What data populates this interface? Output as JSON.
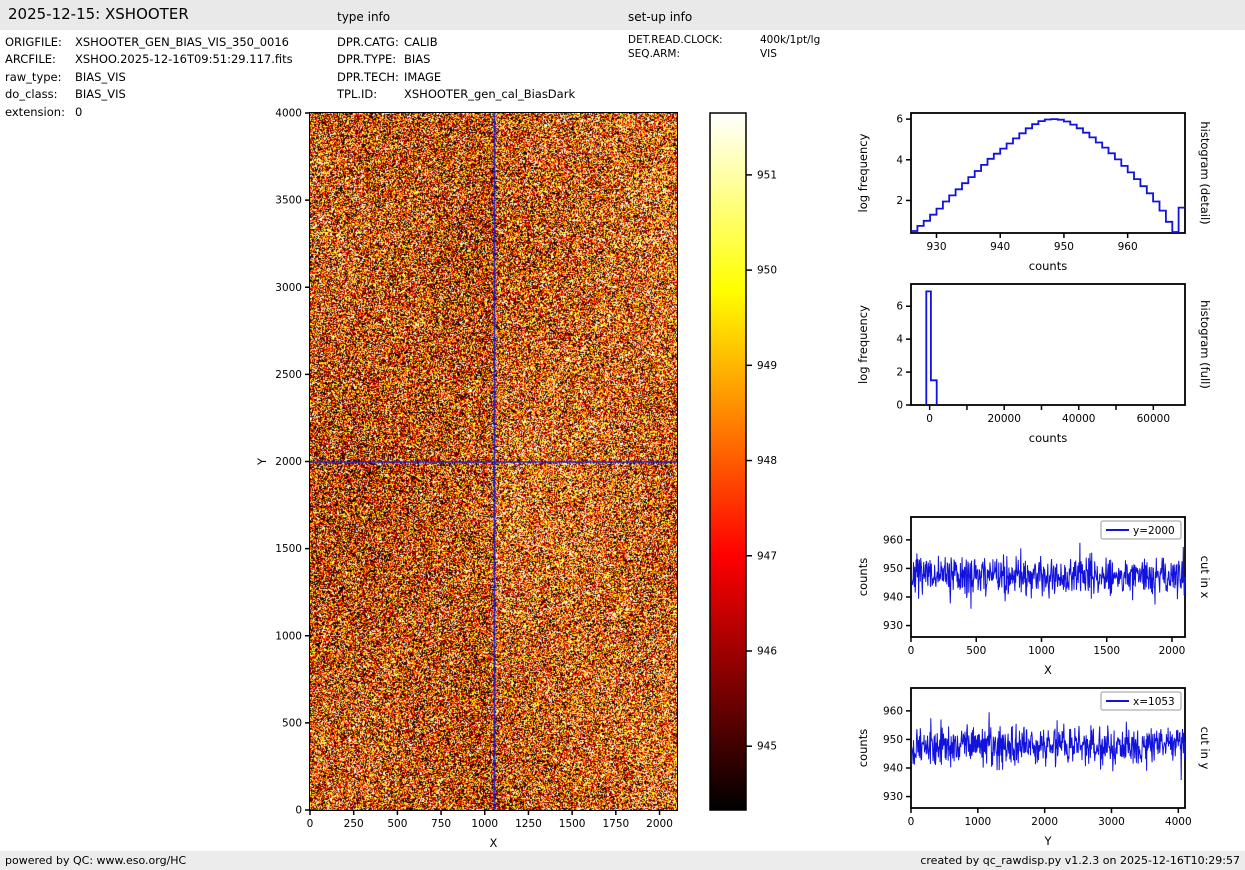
{
  "header": {
    "title": "2025-12-15: XSHOOTER",
    "type_info_label": "type info",
    "setup_info_label": "set-up info"
  },
  "meta": {
    "left": [
      {
        "label": "ORIGFILE:",
        "value": "XSHOOTER_GEN_BIAS_VIS_350_0016"
      },
      {
        "label": "ARCFILE:",
        "value": "XSHOO.2025-12-16T09:51:29.117.fits"
      },
      {
        "label": "raw_type:",
        "value": "BIAS_VIS"
      },
      {
        "label": "do_class:",
        "value": "BIAS_VIS"
      },
      {
        "label": "extension:",
        "value": "0"
      }
    ],
    "type_info": [
      {
        "label": "DPR.CATG:",
        "value": "CALIB"
      },
      {
        "label": "DPR.TYPE:",
        "value": "BIAS"
      },
      {
        "label": "DPR.TECH:",
        "value": "IMAGE"
      },
      {
        "label": "TPL.ID:",
        "value": "XSHOOTER_gen_cal_BiasDark"
      }
    ],
    "setup_info": [
      {
        "label": "DET.READ.CLOCK:",
        "value": "400k/1pt/lg"
      },
      {
        "label": "SEQ.ARM:",
        "value": "VIS"
      }
    ]
  },
  "footer": {
    "left": "powered by QC: www.eso.org/HC",
    "right": "created by qc_rawdisp.py v1.2.3 on 2025-12-16T10:29:57"
  },
  "colors": {
    "line": "#1212dd",
    "crosshair": "#1818cc",
    "frame": "#000000",
    "bar_bg": "#e9e9e9"
  },
  "chart_data": [
    {
      "id": "bias-image",
      "type": "heatmap",
      "xlabel": "X",
      "ylabel": "Y",
      "xlim": [
        0,
        2100
      ],
      "ylim": [
        0,
        4000
      ],
      "xticks": [
        0,
        250,
        500,
        750,
        1000,
        1250,
        1500,
        1750,
        2000
      ],
      "yticks": [
        0,
        500,
        1000,
        1500,
        2000,
        2500,
        3000,
        3500,
        4000
      ],
      "colormap": "hot",
      "vmin": 944.33,
      "vmax": 951.65,
      "noise": {
        "mean": 947.55,
        "std": 2.9,
        "seed": 42,
        "left_offset": -0.2,
        "right_offset": 0.3
      },
      "crosshair": {
        "x": 1053,
        "y": 2000
      }
    },
    {
      "id": "colorbar",
      "type": "colorbar",
      "colormap": "hot",
      "vmin": 944.33,
      "vmax": 951.65,
      "ticks": [
        945,
        946,
        947,
        948,
        949,
        950,
        951
      ]
    },
    {
      "id": "hist-detail",
      "type": "step",
      "xlabel": "counts",
      "ylabel": "log frequency",
      "right_label": "histogram (detail)",
      "xlim": [
        926,
        969
      ],
      "ylim": [
        0.4,
        6.3
      ],
      "xticks": [
        930,
        940,
        950,
        960
      ],
      "yticks": [
        2,
        4,
        6
      ],
      "x": [
        926,
        927,
        928,
        929,
        930,
        931,
        932,
        933,
        934,
        935,
        936,
        937,
        938,
        939,
        940,
        941,
        942,
        943,
        944,
        945,
        946,
        947,
        948,
        949,
        950,
        951,
        952,
        953,
        954,
        955,
        956,
        957,
        958,
        959,
        960,
        961,
        962,
        963,
        964,
        965,
        966,
        967,
        968
      ],
      "y": [
        0.5,
        0.75,
        1.0,
        1.3,
        1.6,
        1.95,
        2.25,
        2.55,
        2.85,
        3.15,
        3.45,
        3.75,
        4.05,
        4.3,
        4.55,
        4.8,
        5.05,
        5.3,
        5.55,
        5.75,
        5.9,
        5.98,
        6.0,
        5.97,
        5.88,
        5.73,
        5.55,
        5.33,
        5.1,
        4.85,
        4.6,
        4.32,
        4.02,
        3.7,
        3.38,
        3.05,
        2.7,
        2.35,
        1.95,
        1.5,
        0.95,
        0.45,
        1.65
      ]
    },
    {
      "id": "hist-full",
      "type": "polyline",
      "xlabel": "counts",
      "ylabel": "log frequency",
      "right_label": "histogram (full)",
      "xlim": [
        -5000,
        68500
      ],
      "ylim": [
        0,
        7.35
      ],
      "xticks": [
        0,
        20000,
        40000,
        60000
      ],
      "xticks_minor": [
        10000,
        30000,
        50000
      ],
      "yticks": [
        0,
        2,
        4,
        6
      ],
      "x": [
        -900,
        -900,
        350,
        350,
        1900,
        1900
      ],
      "y": [
        0.02,
        6.9,
        6.9,
        1.5,
        1.5,
        0.02
      ]
    },
    {
      "id": "cut-x",
      "type": "noise",
      "legend": "y=2000",
      "xlabel": "X",
      "ylabel": "counts",
      "right_label": "cut in x",
      "xlim": [
        0,
        2100
      ],
      "ylim": [
        926,
        968
      ],
      "xticks": [
        0,
        500,
        1000,
        1500,
        2000
      ],
      "yticks": [
        930,
        940,
        950,
        960
      ],
      "noise": {
        "n": 650,
        "mean": 947.5,
        "std": 3.3,
        "min": 934,
        "max": 959,
        "seed": 7
      }
    },
    {
      "id": "cut-y",
      "type": "noise",
      "legend": "x=1053",
      "xlabel": "Y",
      "ylabel": "counts",
      "right_label": "cut in y",
      "xlim": [
        0,
        4100
      ],
      "ylim": [
        926,
        968
      ],
      "xticks": [
        0,
        1000,
        2000,
        3000,
        4000
      ],
      "yticks": [
        930,
        940,
        950,
        960
      ],
      "noise": {
        "n": 650,
        "mean": 948.0,
        "std": 3.3,
        "min": 935,
        "max": 963,
        "seed": 13
      }
    }
  ]
}
